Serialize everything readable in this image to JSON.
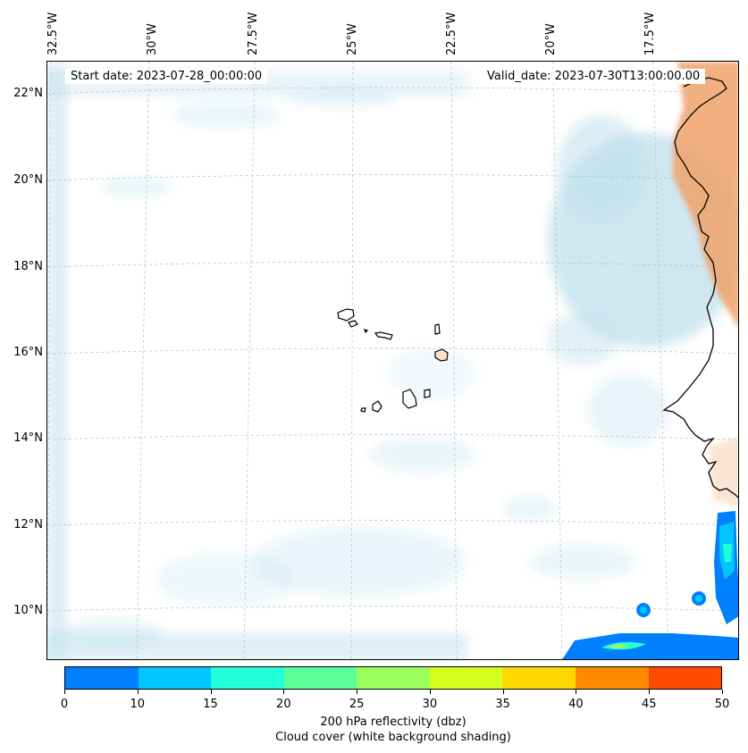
{
  "start_date": "Start date: 2023-07-28_00:00:00",
  "valid_date": "Valid_date: 2023-07-30T13:00:00.00",
  "longitude_labels": [
    "32.5°W",
    "30°W",
    "27.5°W",
    "25°W",
    "22.5°W",
    "20°W",
    "17.5°W"
  ],
  "latitude_labels": [
    "22°N",
    "20°N",
    "18°N",
    "16°N",
    "14°N",
    "12°N",
    "10°N"
  ],
  "colorbar": {
    "title": "200 hPa reflectivity (dbz)",
    "subtitle": "Cloud cover (white background shading)",
    "ticks": [
      "0",
      "10",
      "15",
      "20",
      "25",
      "30",
      "35",
      "40",
      "45",
      "50"
    ],
    "colors": [
      "#0080ff",
      "#00c6ff",
      "#20ffd8",
      "#5dff9b",
      "#9dff5d",
      "#d6ff20",
      "#ffd800",
      "#ff8a00",
      "#ff4a00"
    ]
  },
  "colors": {
    "cloud": "#bfe0ec",
    "land_warm": "#f0a36a",
    "coastline": "#000000",
    "gridline": "#bbbbbb"
  }
}
